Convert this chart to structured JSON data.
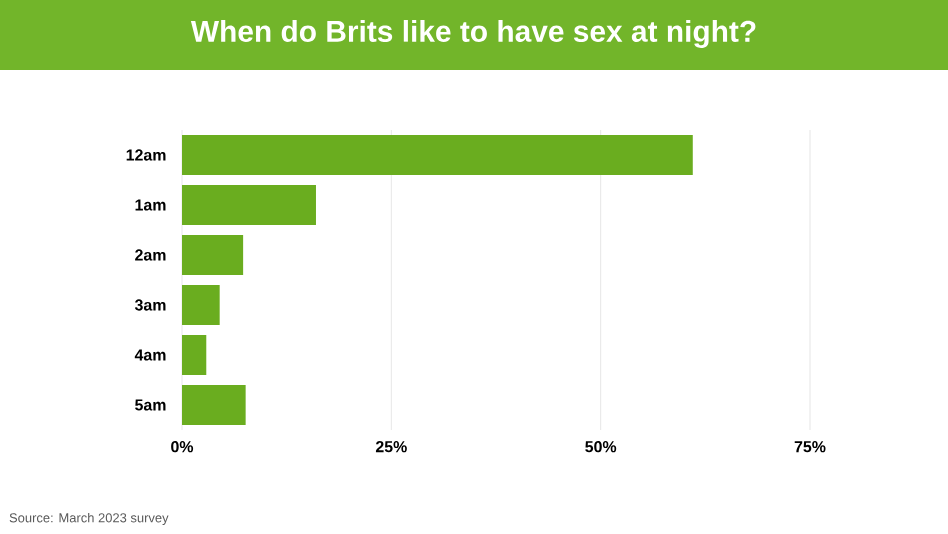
{
  "chart_data": {
    "type": "bar",
    "orientation": "horizontal",
    "title": "When do Brits like to have sex at night?",
    "categories": [
      "12am",
      "1am",
      "2am",
      "3am",
      "4am",
      "5am"
    ],
    "values": [
      61,
      16,
      7.3,
      4.5,
      2.9,
      7.6
    ],
    "color": "#6aad1f",
    "xlim": [
      0,
      75
    ],
    "xticks": [
      {
        "value": 0,
        "label": "0%"
      },
      {
        "value": 25,
        "label": "25%"
      },
      {
        "value": 50,
        "label": "50%"
      },
      {
        "value": 75,
        "label": "75%"
      }
    ],
    "grid": "x",
    "annotations": [
      "Source: March 2023 survey"
    ]
  }
}
